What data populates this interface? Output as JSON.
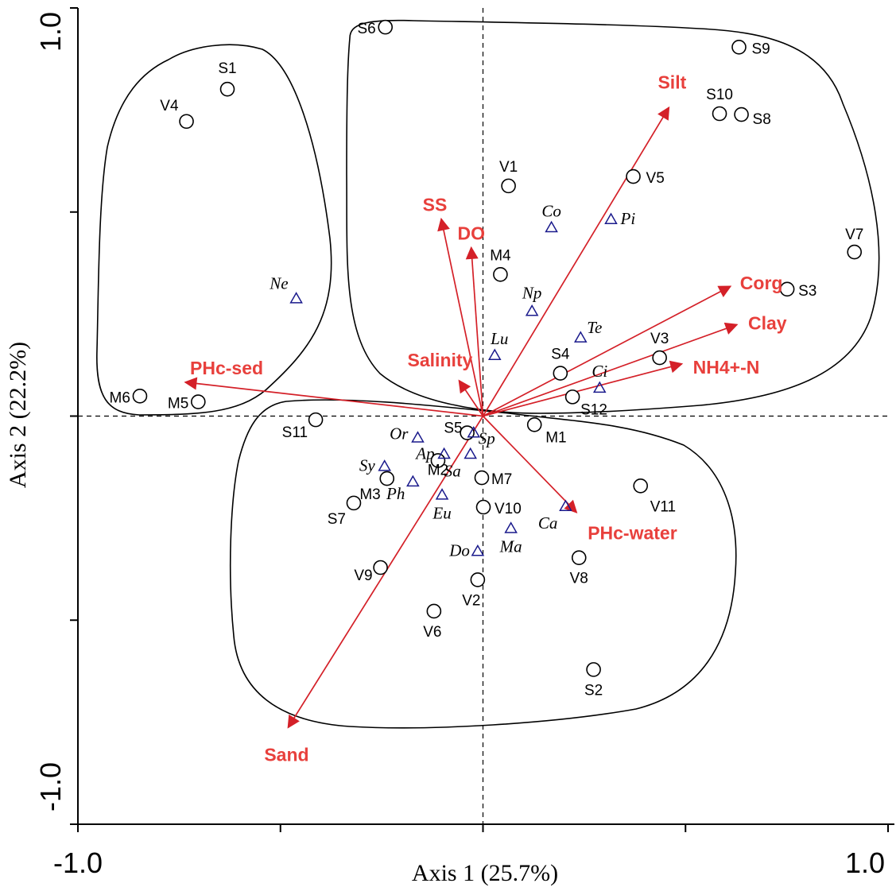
{
  "chart_data": {
    "type": "scatter",
    "subtype": "ordination-triplot",
    "xlabel": "Axis 1 (25.7%)",
    "ylabel": "Axis 2 (22.2%)",
    "xlim": [
      -1.0,
      1.0
    ],
    "ylim": [
      -1.0,
      1.0
    ],
    "x_tick_labels": [
      {
        "value": -1.0,
        "label": "-1.0"
      },
      {
        "value": 1.0,
        "label": "1.0"
      }
    ],
    "y_tick_labels": [
      {
        "value": -1.0,
        "label": "-1.0"
      },
      {
        "value": 1.0,
        "label": "1.0"
      }
    ],
    "minor_ticks": [
      -0.5,
      0.5
    ],
    "zero_lines": true,
    "arrow_color": "#d42028",
    "label_color": "#e8403c",
    "species_color": "#1a1a8c",
    "sites": [
      {
        "label": "S1",
        "x": -0.631,
        "y": 0.801
      },
      {
        "label": "V4",
        "x": -0.732,
        "y": 0.722
      },
      {
        "label": "S6",
        "x": -0.241,
        "y": 0.953
      },
      {
        "label": "S9",
        "x": 0.632,
        "y": 0.904
      },
      {
        "label": "S10",
        "x": 0.584,
        "y": 0.741
      },
      {
        "label": "S8",
        "x": 0.638,
        "y": 0.739
      },
      {
        "label": "V1",
        "x": 0.063,
        "y": 0.564
      },
      {
        "label": "V5",
        "x": 0.371,
        "y": 0.587
      },
      {
        "label": "V7",
        "x": 0.917,
        "y": 0.402
      },
      {
        "label": "M4",
        "x": 0.043,
        "y": 0.347
      },
      {
        "label": "S3",
        "x": 0.751,
        "y": 0.311
      },
      {
        "label": "V3",
        "x": 0.436,
        "y": 0.143
      },
      {
        "label": "S4",
        "x": 0.191,
        "y": 0.105
      },
      {
        "label": "S12",
        "x": 0.221,
        "y": 0.047
      },
      {
        "label": "M6",
        "x": -0.847,
        "y": 0.049
      },
      {
        "label": "M5",
        "x": -0.703,
        "y": 0.035
      },
      {
        "label": "S11",
        "x": -0.413,
        "y": -0.009
      },
      {
        "label": "S5",
        "x": -0.039,
        "y": -0.041
      },
      {
        "label": "M1",
        "x": 0.127,
        "y": -0.021
      },
      {
        "label": "M2",
        "x": -0.111,
        "y": -0.109
      },
      {
        "label": "M3",
        "x": -0.237,
        "y": -0.153
      },
      {
        "label": "M7",
        "x": -0.003,
        "y": -0.151
      },
      {
        "label": "S7",
        "x": -0.319,
        "y": -0.213
      },
      {
        "label": "V10",
        "x": 0.001,
        "y": -0.223
      },
      {
        "label": "V11",
        "x": 0.389,
        "y": -0.171
      },
      {
        "label": "V9",
        "x": -0.253,
        "y": -0.371
      },
      {
        "label": "V8",
        "x": 0.237,
        "y": -0.347
      },
      {
        "label": "V2",
        "x": -0.013,
        "y": -0.401
      },
      {
        "label": "V6",
        "x": -0.121,
        "y": -0.478
      },
      {
        "label": "S2",
        "x": 0.273,
        "y": -0.621
      }
    ],
    "species": [
      {
        "label": "Ne",
        "x": -0.461,
        "y": 0.288
      },
      {
        "label": "Co",
        "x": 0.169,
        "y": 0.462
      },
      {
        "label": "Pi",
        "x": 0.316,
        "y": 0.482
      },
      {
        "label": "Np",
        "x": 0.121,
        "y": 0.257
      },
      {
        "label": "Te",
        "x": 0.241,
        "y": 0.192
      },
      {
        "label": "Lu",
        "x": 0.029,
        "y": 0.149
      },
      {
        "label": "Ci",
        "x": 0.288,
        "y": 0.069
      },
      {
        "label": "Or",
        "x": -0.161,
        "y": -0.053
      },
      {
        "label": "Sp",
        "x": -0.023,
        "y": -0.041
      },
      {
        "label": "Ap",
        "x": -0.096,
        "y": -0.093
      },
      {
        "label": "Sa",
        "x": -0.031,
        "y": -0.093
      },
      {
        "label": "Sy",
        "x": -0.243,
        "y": -0.123
      },
      {
        "label": "Ph",
        "x": -0.173,
        "y": -0.161
      },
      {
        "label": "Eu",
        "x": -0.101,
        "y": -0.193
      },
      {
        "label": "Ca",
        "x": 0.204,
        "y": -0.221
      },
      {
        "label": "Ma",
        "x": 0.069,
        "y": -0.275
      },
      {
        "label": "Do",
        "x": -0.013,
        "y": -0.331
      }
    ],
    "environmental_vectors": [
      {
        "label": "Silt",
        "x": 0.459,
        "y": 0.756
      },
      {
        "label": "SS",
        "x": -0.103,
        "y": 0.483
      },
      {
        "label": "DO",
        "x": -0.029,
        "y": 0.413
      },
      {
        "label": "Corg",
        "x": 0.611,
        "y": 0.318
      },
      {
        "label": "Clay",
        "x": 0.627,
        "y": 0.224
      },
      {
        "label": "NH4+-N",
        "x": 0.491,
        "y": 0.128
      },
      {
        "label": "Salinity",
        "x": -0.059,
        "y": 0.087
      },
      {
        "label": "PHc-sed",
        "x": -0.735,
        "y": 0.083
      },
      {
        "label": "PHc-water",
        "x": 0.231,
        "y": -0.236
      },
      {
        "label": "Sand",
        "x": -0.481,
        "y": -0.763
      }
    ]
  }
}
